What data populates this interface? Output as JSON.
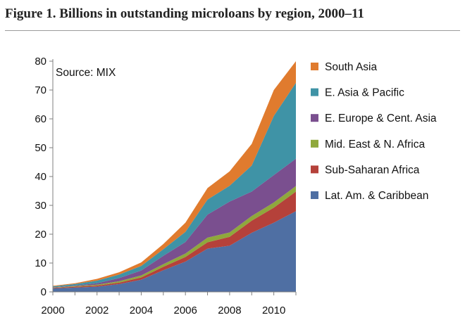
{
  "title": "Figure 1. Billions in outstanding microloans by region, 2000–11",
  "chart_data": {
    "type": "area",
    "stacked": true,
    "title": "Figure 1. Billions in outstanding microloans by region, 2000–11",
    "source": "Source: MIX",
    "xlabel": "",
    "ylabel": "",
    "x": [
      2000,
      2001,
      2002,
      2003,
      2004,
      2005,
      2006,
      2007,
      2008,
      2009,
      2010,
      2011
    ],
    "xlim": [
      2000,
      2011
    ],
    "ylim": [
      0,
      80
    ],
    "x_ticks": [
      "2000",
      "2002",
      "2004",
      "2006",
      "2008",
      "2010"
    ],
    "y_ticks": [
      "0",
      "10",
      "20",
      "30",
      "40",
      "50",
      "60",
      "70",
      "80"
    ],
    "legend_position": "right",
    "series": [
      {
        "name": "Lat. Am. & Caribbean",
        "color": "#4f6fa3",
        "values": [
          1.2,
          1.5,
          1.8,
          2.7,
          4.2,
          7.5,
          10.5,
          15.0,
          16.0,
          20.5,
          24.0,
          28.0
        ]
      },
      {
        "name": "Sub-Saharan Africa",
        "color": "#b5413a",
        "values": [
          0.2,
          0.3,
          0.4,
          0.5,
          0.8,
          1.2,
          1.6,
          2.2,
          3.1,
          4.2,
          5.2,
          6.8
        ]
      },
      {
        "name": "Mid. East & N. Africa",
        "color": "#8fa83c",
        "values": [
          0.1,
          0.2,
          0.3,
          0.5,
          0.7,
          0.9,
          1.2,
          1.6,
          1.5,
          1.6,
          1.8,
          1.9
        ]
      },
      {
        "name": "E. Europe & Cent. Asia",
        "color": "#7a4f8f",
        "values": [
          0.1,
          0.2,
          0.5,
          1.1,
          1.7,
          2.9,
          4.0,
          8.0,
          10.7,
          8.5,
          9.5,
          9.5
        ]
      },
      {
        "name": "E. Asia & Pacific",
        "color": "#3f93a6",
        "values": [
          0.3,
          0.5,
          0.9,
          1.2,
          1.6,
          2.3,
          3.5,
          5.2,
          5.5,
          9.0,
          20.5,
          26.3
        ]
      },
      {
        "name": "South Asia",
        "color": "#e07b2e",
        "values": [
          0.2,
          0.3,
          0.6,
          0.8,
          1.2,
          1.8,
          3.2,
          4.0,
          5.0,
          7.5,
          9.0,
          7.5
        ]
      }
    ]
  }
}
